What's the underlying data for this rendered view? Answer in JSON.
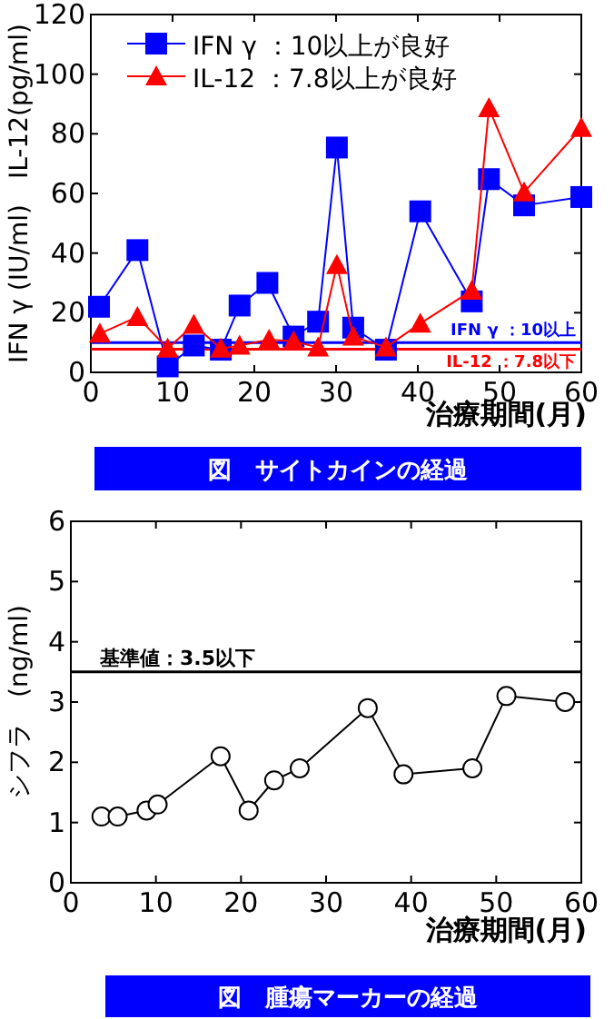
{
  "chart_data": [
    {
      "type": "line",
      "xlabel": "治療期間(月)",
      "ylabel": "IFN γ (IU/ml)　IL-12(pg/ml)",
      "xlim": [
        0,
        60
      ],
      "ylim": [
        0,
        120
      ],
      "xticks": [
        0,
        10,
        20,
        30,
        40,
        50,
        60
      ],
      "yticks": [
        0,
        20,
        40,
        60,
        80,
        100,
        120
      ],
      "legend": "top left",
      "series": [
        {
          "name": "IFN γ ：10以上が良好",
          "color": "#0000ff",
          "marker": "square",
          "x": [
            1,
            5.7,
            9.4,
            12.6,
            15.9,
            18.2,
            21.6,
            24.8,
            27.8,
            30.1,
            32.1,
            36.1,
            40.3,
            46.6,
            48.7,
            53,
            60
          ],
          "values": [
            22,
            41,
            2,
            9,
            7.6,
            22.4,
            30,
            12,
            17,
            75.4,
            15,
            7.6,
            54,
            23.8,
            64.8,
            56,
            58.8
          ]
        },
        {
          "name": "IL-12 ：7.8以上が良好",
          "color": "#ff0000",
          "marker": "triangle",
          "x": [
            1.1,
            5.7,
            9.4,
            12.6,
            15.9,
            18.2,
            21.8,
            24.8,
            27.8,
            30.1,
            32.1,
            36.1,
            40.3,
            46.6,
            48.7,
            53,
            60
          ],
          "values": [
            13,
            18.6,
            8,
            16,
            8,
            9,
            11,
            10.4,
            8.4,
            36,
            12,
            8.4,
            16.4,
            27.4,
            88.6,
            60.4,
            82
          ]
        }
      ],
      "ref_lines": [
        {
          "axis": "y",
          "value": 10,
          "label": "IFN γ ：10以上",
          "color": "#0000ff"
        },
        {
          "axis": "y",
          "value": 7.8,
          "label": "IL-12 ：7.8以下",
          "color": "#ff0000"
        }
      ],
      "annotations": [
        "図　サイトカインの経過"
      ]
    },
    {
      "type": "line",
      "xlabel": "治療期間(月)",
      "ylabel": "シフラ　(ng/ml)",
      "xlim": [
        0,
        60
      ],
      "ylim": [
        0,
        6
      ],
      "xticks": [
        0,
        10,
        20,
        30,
        40,
        50,
        60
      ],
      "yticks": [
        0,
        1,
        2,
        3,
        4,
        5,
        6
      ],
      "series": [
        {
          "color": "#000000",
          "marker": "circle",
          "x": [
            3.6,
            5.5,
            8.9,
            10.2,
            17.6,
            20.9,
            23.9,
            26.9,
            34.9,
            39.1,
            47.2,
            51.2,
            58.1
          ],
          "values": [
            1.1,
            1.1,
            1.2,
            1.3,
            2.1,
            1.2,
            1.7,
            1.9,
            2.9,
            1.8,
            1.9,
            3.1,
            3.0
          ]
        }
      ],
      "ref_lines": [
        {
          "axis": "y",
          "value": 3.5,
          "label": "基準値：3.5以下",
          "color": "#000000"
        }
      ],
      "annotations": [
        "図　腫瘍マーカーの経過"
      ]
    }
  ]
}
